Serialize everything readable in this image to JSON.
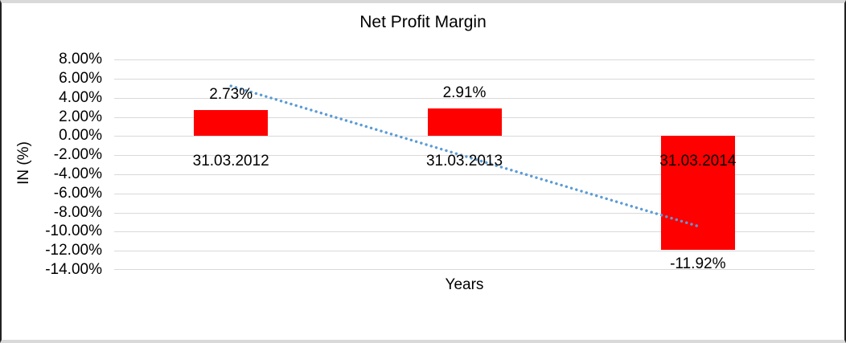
{
  "chart_data": {
    "type": "bar",
    "title": "Net Profit Margin",
    "xlabel": "Years",
    "ylabel": "IN (%)",
    "categories": [
      "31.03.2012",
      "31.03.2013",
      "31.03.2014"
    ],
    "values": [
      2.73,
      2.91,
      -11.92
    ],
    "value_labels": [
      "2.73%",
      "2.91%",
      "-11.92%"
    ],
    "ylim": [
      -14,
      8
    ],
    "ytick_step": 2,
    "ytick_labels": [
      "8.00%",
      "6.00%",
      "4.00%",
      "2.00%",
      "0.00%",
      "-2.00%",
      "-4.00%",
      "-6.00%",
      "-8.00%",
      "-10.00%",
      "-12.00%",
      "-14.00%"
    ],
    "grid": true,
    "legend": "none",
    "bar_color": "#ff0000",
    "gridline_color": "#d9d9d9",
    "text_color": "#000000",
    "trendline": {
      "style": "dotted",
      "color": "#5b9bd5",
      "start_category_index": 0,
      "end_category_index": 2,
      "start_value": 5.23,
      "end_value": -9.42
    }
  }
}
